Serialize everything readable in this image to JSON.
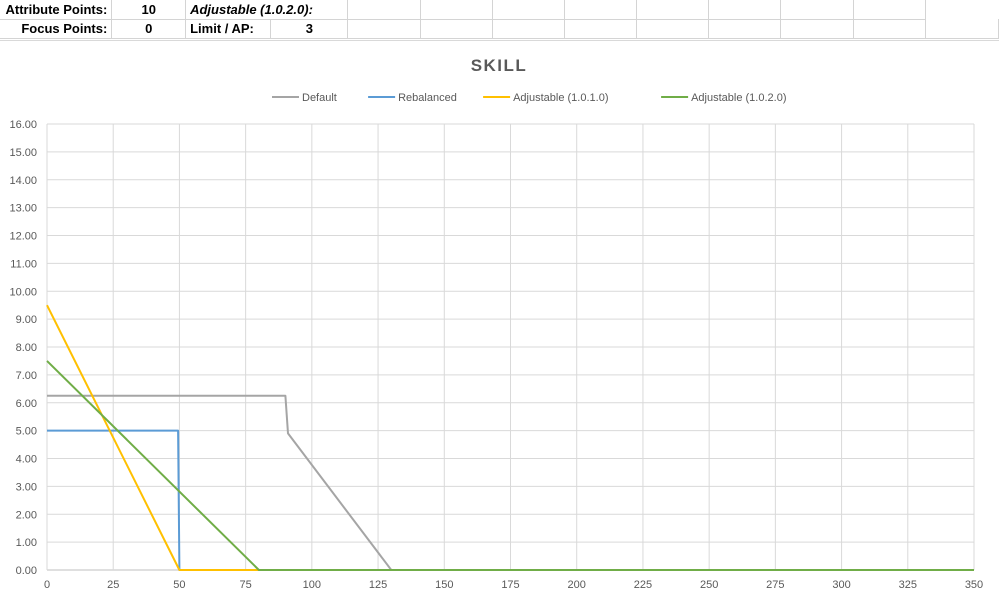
{
  "sheet": {
    "row1": {
      "label": "Attribute Points:",
      "value": "10",
      "param_label": "Adjustable (1.0.2.0):"
    },
    "row2": {
      "label": "Focus Points:",
      "value": "0",
      "param_label": "Limit / AP:",
      "param_value": "3"
    }
  },
  "chart_data": {
    "type": "line",
    "title": "SKILL",
    "xlabel": "",
    "ylabel": "",
    "xlim": [
      0,
      350
    ],
    "ylim": [
      0,
      16
    ],
    "x_ticks": [
      0,
      25,
      50,
      75,
      100,
      125,
      150,
      175,
      200,
      225,
      250,
      275,
      300,
      325,
      350
    ],
    "y_ticks": [
      0,
      1,
      2,
      3,
      4,
      5,
      6,
      7,
      8,
      9,
      10,
      11,
      12,
      13,
      14,
      15,
      16
    ],
    "y_tick_format": "2dp",
    "grid": true,
    "legend_position": "top",
    "series": [
      {
        "name": "Default",
        "color": "#a5a5a5",
        "points": [
          [
            0,
            6.25
          ],
          [
            90,
            6.25
          ],
          [
            91,
            4.9
          ],
          [
            130,
            0
          ],
          [
            350,
            0
          ]
        ]
      },
      {
        "name": "Rebalanced",
        "color": "#5b9bd5",
        "points": [
          [
            0,
            5.0
          ],
          [
            49.5,
            5.0
          ],
          [
            50,
            0
          ],
          [
            350,
            0
          ]
        ]
      },
      {
        "name": "Adjustable (1.0.1.0)",
        "color": "#ffc000",
        "points": [
          [
            0,
            9.5
          ],
          [
            50,
            0
          ],
          [
            350,
            0
          ]
        ]
      },
      {
        "name": "Adjustable (1.0.2.0)",
        "color": "#70ad47",
        "points": [
          [
            0,
            7.5
          ],
          [
            80,
            0
          ],
          [
            350,
            0
          ]
        ]
      }
    ]
  }
}
